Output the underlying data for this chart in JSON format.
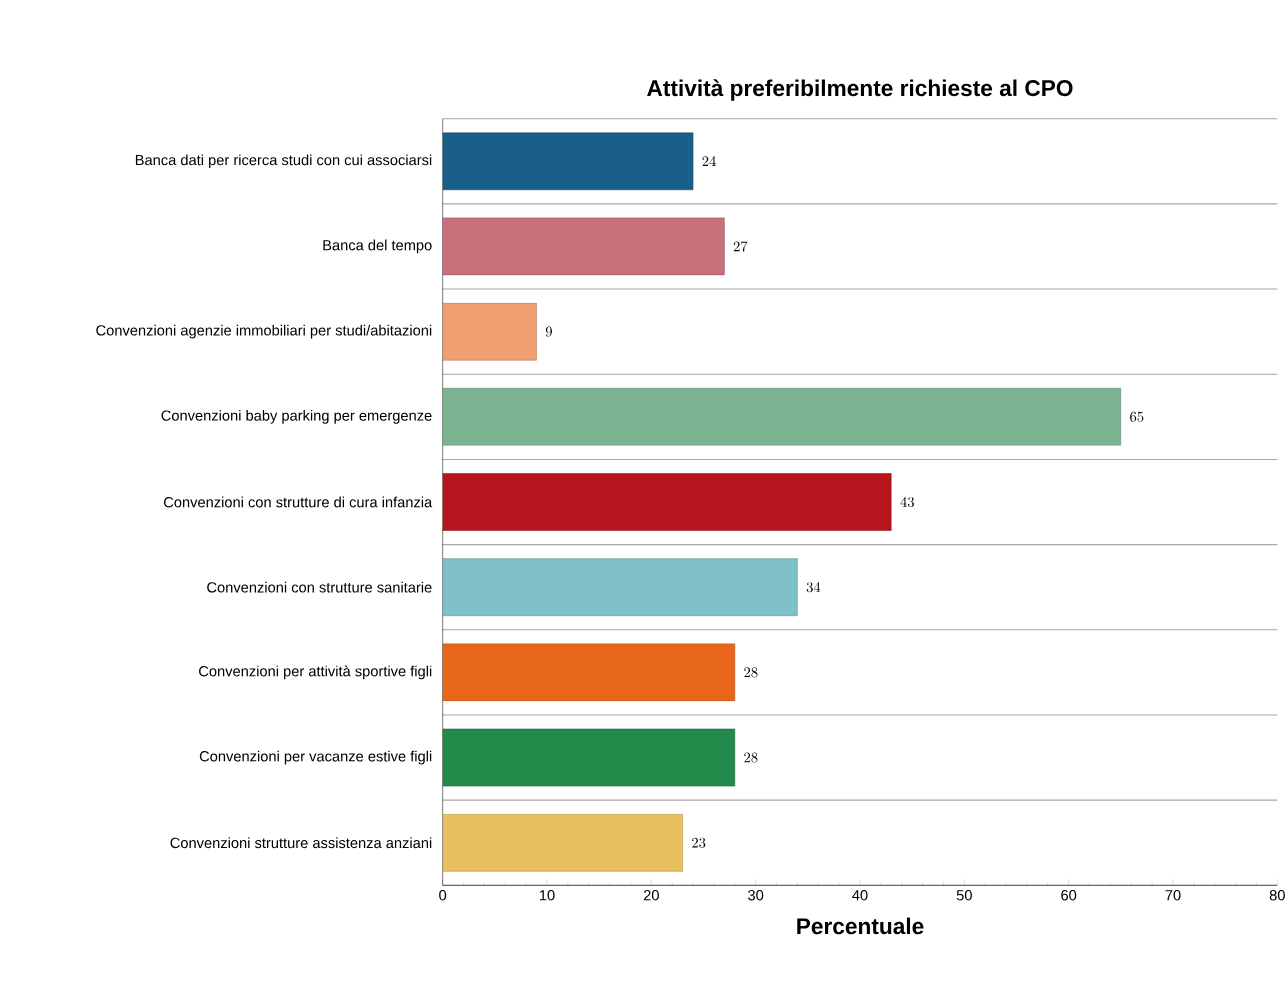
{
  "chart_data": {
    "type": "bar",
    "orientation": "horizontal",
    "title": "Attività preferibilmente richieste al CPO",
    "xlabel": "Percentuale",
    "categories": [
      "Banca dati per ricerca studi con cui associarsi",
      "Banca del tempo",
      "Convenzioni agenzie immobiliari per studi/abitazioni",
      "Convenzioni baby parking per emergenze",
      "Convenzioni con strutture di cura infanzia",
      "Convenzioni con strutture sanitarie",
      "Convenzioni per attività sportive figli",
      "Convenzioni per vacanze estive figli",
      "Convenzioni strutture assistenza anziani"
    ],
    "values": [
      24,
      27,
      9,
      65,
      43,
      34,
      28,
      28,
      23
    ],
    "colors": [
      "#1a5e8a",
      "#c8707a",
      "#f0a070",
      "#7ab38f",
      "#b8141e",
      "#80c0c8",
      "#e8661a",
      "#228a4a",
      "#e8c060"
    ],
    "xlim": [
      0,
      80
    ],
    "xticks": [
      0,
      10,
      20,
      30,
      40,
      50,
      60,
      70,
      80
    ],
    "grid": "y",
    "data_labels": true
  }
}
